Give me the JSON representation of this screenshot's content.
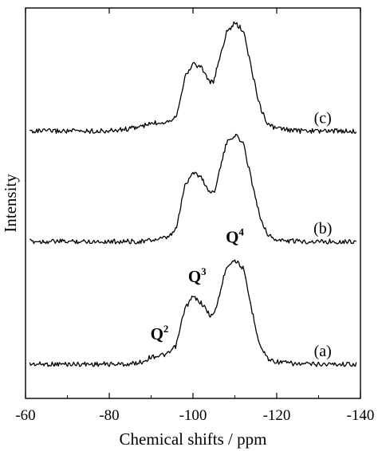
{
  "chart_data": {
    "type": "line",
    "xlabel": "Chemical shifts / ppm",
    "ylabel": "Intensity",
    "xlim": [
      -60,
      -140
    ],
    "x_ticks": [
      -60,
      -80,
      -100,
      -120,
      -140
    ],
    "x_tick_labels": [
      "-60",
      "-80",
      "-100",
      "-120",
      "-140"
    ],
    "y_ticks_shown": false,
    "grid": false,
    "x": [
      -60,
      -70,
      -80,
      -85,
      -88,
      -90,
      -92,
      -94,
      -96,
      -98,
      -100,
      -102,
      -104,
      -105,
      -106,
      -108,
      -110,
      -112,
      -114,
      -116,
      -118,
      -120,
      -125,
      -130,
      -140
    ],
    "series": [
      {
        "name": "(a)",
        "offset": 0,
        "values": [
          0.0,
          0.0,
          0.0,
          0.0,
          0.02,
          0.06,
          0.07,
          0.08,
          0.15,
          0.45,
          0.55,
          0.5,
          0.4,
          0.4,
          0.52,
          0.8,
          0.85,
          0.78,
          0.45,
          0.15,
          0.04,
          0.02,
          0.0,
          0.0,
          0.0
        ]
      },
      {
        "name": "(b)",
        "offset": 1.0,
        "values": [
          0.0,
          0.0,
          0.0,
          0.0,
          0.0,
          0.01,
          0.02,
          0.03,
          0.1,
          0.45,
          0.57,
          0.52,
          0.4,
          0.4,
          0.53,
          0.8,
          0.87,
          0.8,
          0.5,
          0.2,
          0.05,
          0.01,
          0.0,
          0.0,
          0.0
        ]
      },
      {
        "name": "(c)",
        "offset": 1.9,
        "values": [
          0.0,
          0.0,
          0.0,
          0.02,
          0.04,
          0.06,
          0.07,
          0.08,
          0.12,
          0.43,
          0.55,
          0.52,
          0.4,
          0.4,
          0.55,
          0.8,
          0.88,
          0.82,
          0.5,
          0.2,
          0.05,
          0.02,
          0.0,
          0.0,
          0.0
        ]
      }
    ],
    "peak_labels": [
      {
        "base": "Q",
        "sup": "2",
        "x": -92,
        "y": 0.2
      },
      {
        "base": "Q",
        "sup": "3",
        "x": -101,
        "y": 0.67
      },
      {
        "base": "Q",
        "sup": "4",
        "x": -110,
        "y": 0.99
      }
    ]
  }
}
